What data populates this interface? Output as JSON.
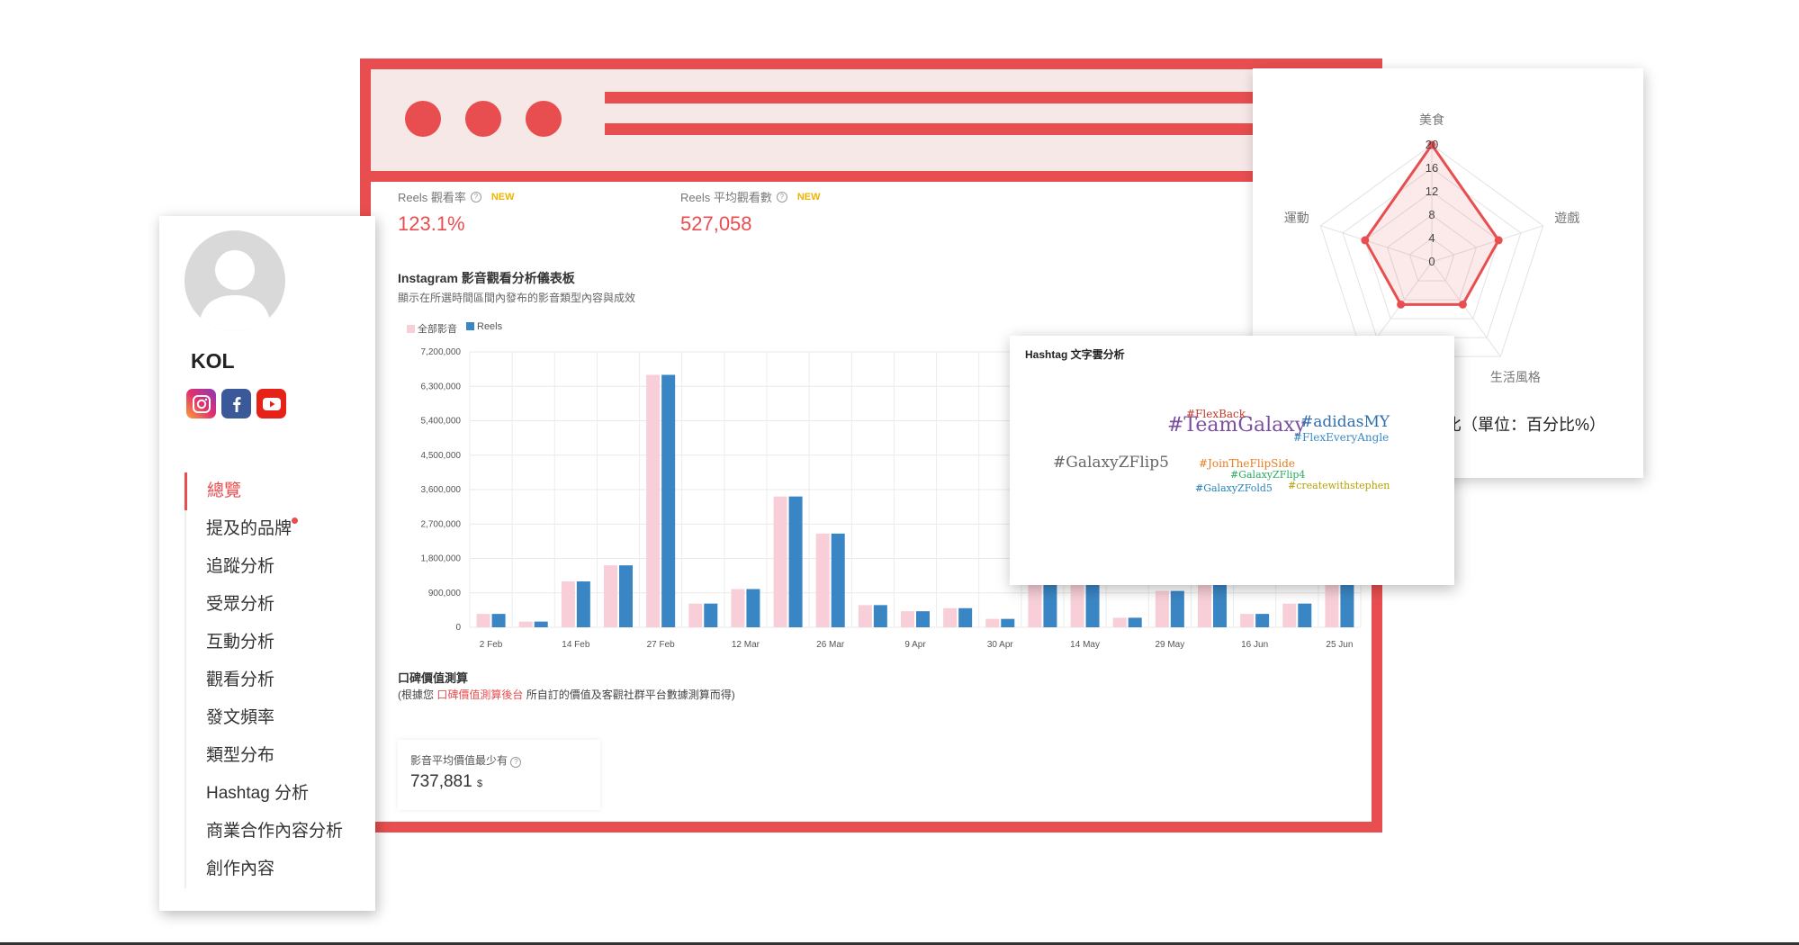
{
  "sidebar": {
    "name": "KOL",
    "socials": [
      "instagram-icon",
      "facebook-icon",
      "youtube-icon"
    ],
    "menu": [
      "總覽",
      "提及的品牌",
      "追蹤分析",
      "受眾分析",
      "互動分析",
      "觀看分析",
      "發文頻率",
      "類型分布",
      "Hashtag 分析",
      "商業合作內容分析",
      "創作內容"
    ]
  },
  "metrics": [
    {
      "label": "Reels 觀看率",
      "badge": "NEW",
      "value": "123.1%"
    },
    {
      "label": "Reels 平均觀看數",
      "badge": "NEW",
      "value": "527,058"
    }
  ],
  "dashboard": {
    "title": "Instagram 影音觀看分析儀表板",
    "subtitle": "顯示在所選時間區間內發布的影音類型內容與成效"
  },
  "chart_data": {
    "type": "bar",
    "series": [
      {
        "name": "全部影音",
        "color": "#f8cfd8",
        "values": [
          350000,
          150000,
          1200000,
          1620000,
          6600000,
          620000,
          1000000,
          3420000,
          2450000,
          580000,
          420000,
          500000,
          220000,
          1380000,
          1300000,
          250000,
          950000,
          1350000,
          350000,
          620000,
          1300000
        ]
      },
      {
        "name": "Reels",
        "color": "#3a86c4",
        "values": [
          350000,
          150000,
          1200000,
          1620000,
          6600000,
          620000,
          1000000,
          3420000,
          2450000,
          580000,
          420000,
          500000,
          220000,
          1380000,
          1300000,
          250000,
          950000,
          1350000,
          350000,
          620000,
          1300000
        ]
      }
    ],
    "x_tick_labels": [
      "2 Feb",
      "14 Feb",
      "27 Feb",
      "12 Mar",
      "26 Mar",
      "9 Apr",
      "30 Apr",
      "14 May",
      "29 May",
      "16 Jun",
      "25 Jun"
    ],
    "y_tick_labels": [
      "0",
      "900,000",
      "1,800,000",
      "2,700,000",
      "3,600,000",
      "4,500,000",
      "5,400,000",
      "6,300,000",
      "7,200,000"
    ],
    "ylim": [
      0,
      7200000
    ],
    "grid": true,
    "legend": "top-left"
  },
  "wom": {
    "title": "口碑價值測算",
    "sub_prefix": "(根據您 ",
    "sub_link": "口碑價值測算後台",
    "sub_suffix": " 所自訂的價值及客觀社群平台數據測算而得)",
    "card_label": "影音平均價值最少有",
    "card_value": "737,881",
    "card_unit": "$"
  },
  "radar": {
    "axes": [
      "美食",
      "遊戲",
      "生活風格",
      "",
      "運動"
    ],
    "values": [
      20,
      12,
      9,
      9,
      12
    ],
    "max": 20,
    "ticks": [
      "20",
      "16",
      "12",
      "8",
      "4",
      "0"
    ],
    "title_fragment": "比（單位：百分比%）",
    "color": "#e84e4f"
  },
  "hashtag": {
    "title": "Hashtag 文字雲分析",
    "tags": [
      {
        "text": "#TeamGalaxy",
        "color": "#7b4fa0",
        "size": 22
      },
      {
        "text": "#GalaxyZFlip5",
        "color": "#666666",
        "size": 17
      },
      {
        "text": "#adidasMY",
        "color": "#2f6fb0",
        "size": 17
      },
      {
        "text": "#FlexEveryAngle",
        "color": "#3a8ac4",
        "size": 12
      },
      {
        "text": "#FlexBack",
        "color": "#c0392b",
        "size": 12
      },
      {
        "text": "#JoinTheFlipSide",
        "color": "#e67e22",
        "size": 12
      },
      {
        "text": "#GalaxyZFlip4",
        "color": "#27ae60",
        "size": 11
      },
      {
        "text": "#GalaxyZFold5",
        "color": "#2980b9",
        "size": 11
      },
      {
        "text": "#createwithstephen",
        "color": "#b8a100",
        "size": 11
      }
    ]
  }
}
